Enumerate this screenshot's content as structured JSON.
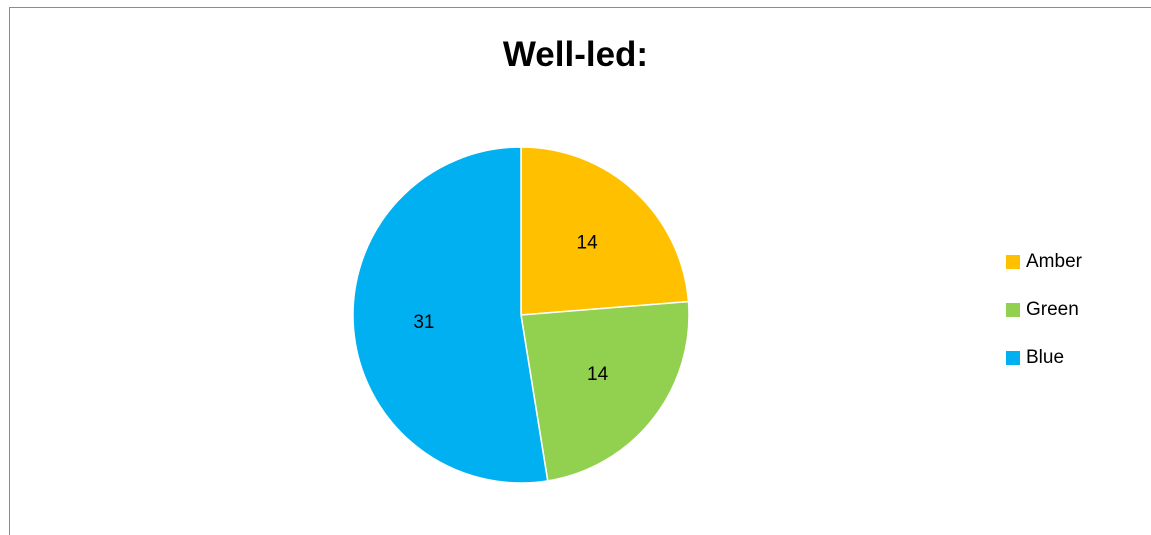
{
  "chart_data": {
    "type": "pie",
    "title": "Well-led:",
    "categories": [
      "Amber",
      "Green",
      "Blue"
    ],
    "values": [
      14,
      14,
      31
    ],
    "colors": [
      "#FFC000",
      "#92D050",
      "#00B0F0"
    ],
    "data_labels": [
      "14",
      "14",
      "31"
    ],
    "legend": {
      "placement": "right",
      "entries": [
        "Amber",
        "Green",
        "Blue"
      ]
    }
  }
}
